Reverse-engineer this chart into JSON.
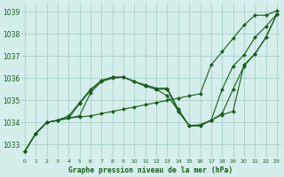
{
  "background_color": "#d4eeeb",
  "grid_color": "#aacfc9",
  "line_color": "#1a5c1a",
  "title": "Graphe pression niveau de la mer (hPa)",
  "xlim": [
    -0.3,
    23.3
  ],
  "ylim": [
    1032.4,
    1039.4
  ],
  "yticks": [
    1033,
    1034,
    1035,
    1036,
    1037,
    1038,
    1039
  ],
  "xticks": [
    0,
    1,
    2,
    3,
    4,
    5,
    6,
    7,
    8,
    9,
    10,
    11,
    12,
    13,
    14,
    15,
    16,
    17,
    18,
    19,
    20,
    21,
    22,
    23
  ],
  "series": [
    {
      "x": [
        0,
        1,
        2,
        3,
        4,
        5,
        6,
        7,
        8,
        9,
        10,
        11,
        12,
        13,
        14,
        15,
        16,
        17,
        18,
        19,
        20,
        21,
        22,
        23
      ],
      "y": [
        1032.7,
        1033.5,
        1034.0,
        1034.1,
        1034.2,
        1034.25,
        1034.3,
        1034.4,
        1034.5,
        1034.6,
        1034.7,
        1034.8,
        1034.9,
        1035.0,
        1035.1,
        1035.2,
        1035.3,
        1036.6,
        1037.2,
        1037.8,
        1038.4,
        1038.85,
        1038.85,
        1039.05
      ]
    },
    {
      "x": [
        0,
        1,
        2,
        3,
        4,
        5,
        6,
        7,
        8,
        9,
        10,
        11,
        12,
        13,
        14,
        15,
        16,
        17,
        18,
        19,
        20,
        21,
        22,
        23
      ],
      "y": [
        1032.7,
        1033.5,
        1034.0,
        1034.1,
        1034.2,
        1034.3,
        1035.35,
        1035.85,
        1036.0,
        1036.05,
        1035.85,
        1035.65,
        1035.5,
        1035.5,
        1034.5,
        1033.85,
        1033.85,
        1034.1,
        1034.35,
        1034.5,
        1036.6,
        1037.1,
        1037.85,
        1038.9
      ]
    },
    {
      "x": [
        0,
        1,
        2,
        3,
        4,
        5,
        6,
        7,
        8,
        9,
        10,
        11,
        12,
        13,
        14,
        15,
        16,
        17,
        18,
        19,
        20,
        21,
        22,
        23
      ],
      "y": [
        1032.7,
        1033.5,
        1034.0,
        1034.1,
        1034.2,
        1034.85,
        1035.45,
        1035.9,
        1036.05,
        1036.05,
        1035.85,
        1035.65,
        1035.5,
        1035.2,
        1034.55,
        1033.85,
        1033.85,
        1034.1,
        1034.4,
        1035.5,
        1036.55,
        1037.1,
        1037.85,
        1038.9
      ]
    },
    {
      "x": [
        0,
        1,
        2,
        3,
        4,
        5,
        6,
        7,
        8,
        9,
        10,
        11,
        12,
        13,
        14,
        15,
        16,
        17,
        18,
        19,
        20,
        21,
        22,
        23
      ],
      "y": [
        1032.7,
        1033.5,
        1034.0,
        1034.1,
        1034.3,
        1034.9,
        1035.5,
        1035.9,
        1036.05,
        1036.05,
        1035.85,
        1035.7,
        1035.55,
        1035.55,
        1034.6,
        1033.85,
        1033.9,
        1034.1,
        1035.5,
        1036.55,
        1037.05,
        1037.85,
        1038.35,
        1038.9
      ]
    }
  ]
}
